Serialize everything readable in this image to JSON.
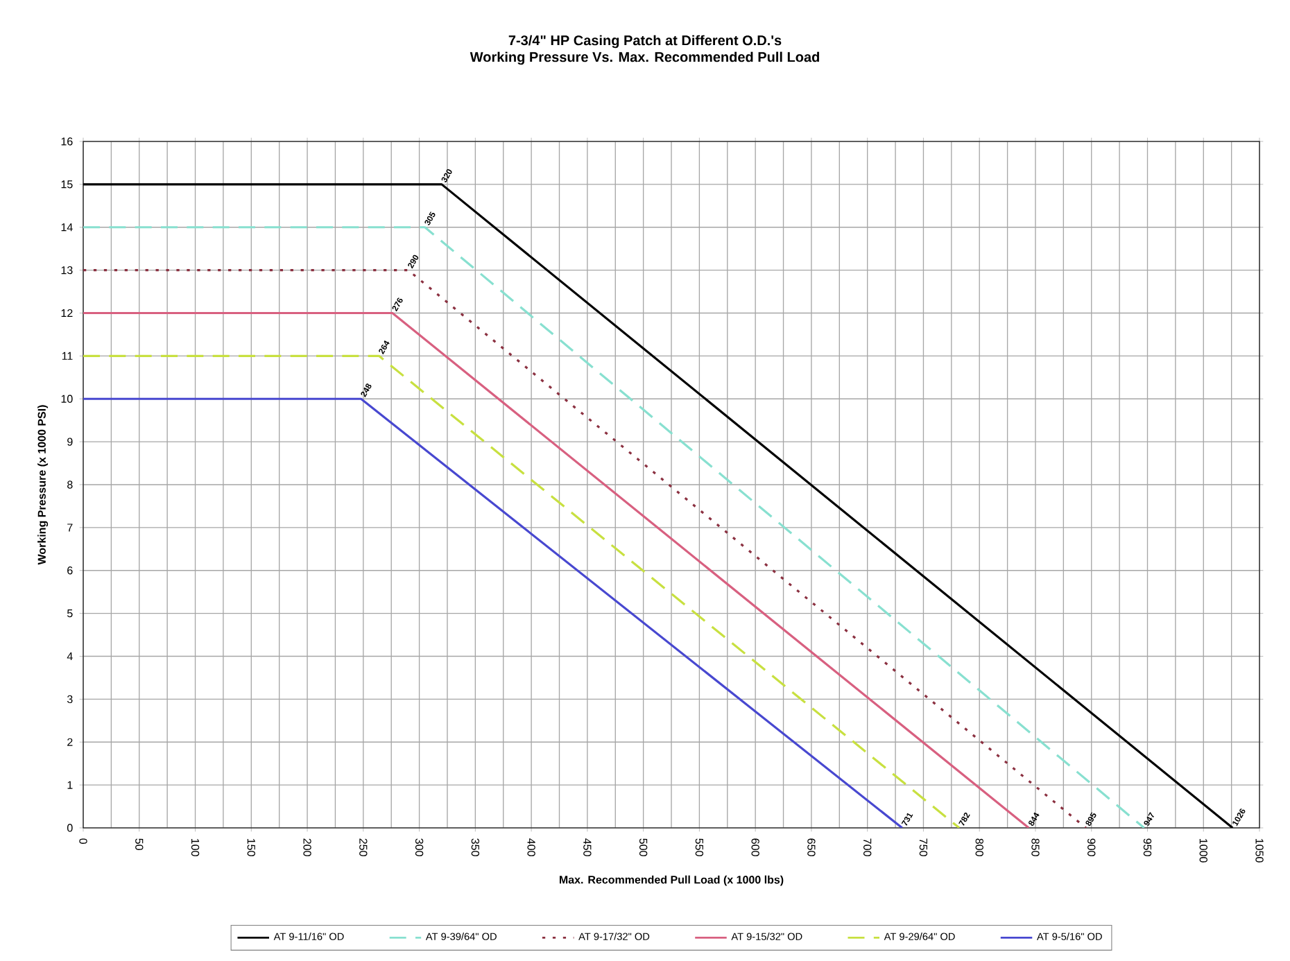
{
  "chart_data": {
    "type": "line",
    "title": "7-3/4\" HP Casing Patch at Different O.D.'s",
    "subtitle": "Working Pressure Vs. Max. Recommended Pull Load",
    "xlabel": "Max. Recommended Pull Load (x 1000 lbs)",
    "ylabel": "Working Pressure (x 1000 PSI)",
    "xlim": [
      0,
      1050
    ],
    "xticks": [
      0,
      50,
      100,
      150,
      200,
      250,
      300,
      350,
      400,
      450,
      500,
      550,
      600,
      650,
      700,
      750,
      800,
      850,
      900,
      950,
      1000,
      1050
    ],
    "ylim": [
      0,
      16
    ],
    "yticks": [
      0,
      1,
      2,
      3,
      4,
      5,
      6,
      7,
      8,
      9,
      10,
      11,
      12,
      13,
      14,
      15,
      16
    ],
    "grid": true,
    "legend": "bottom",
    "marker": "none",
    "series": [
      {
        "name": "AT 9-11/16\" OD",
        "color": "#000000",
        "line_style": "solid",
        "x": [
          0,
          320,
          1026
        ],
        "values": [
          15,
          15,
          0
        ]
      },
      {
        "name": "AT 9-39/64\" OD",
        "color": "#88e0d0",
        "line_style": "dashed",
        "x": [
          0,
          305,
          947
        ],
        "values": [
          14,
          14,
          0
        ]
      },
      {
        "name": "AT 9-17/32\" OD",
        "color": "#8b3040",
        "line_style": "dotted",
        "x": [
          0,
          290,
          895
        ],
        "values": [
          13,
          13,
          0
        ]
      },
      {
        "name": "AT 9-15/32\" OD",
        "color": "#d86080",
        "line_style": "solid",
        "x": [
          0,
          276,
          844
        ],
        "values": [
          12,
          12,
          0
        ]
      },
      {
        "name": "AT 9-29/64\" OD",
        "color": "#c8e040",
        "line_style": "dashed",
        "x": [
          0,
          264,
          782
        ],
        "values": [
          11,
          11,
          0
        ]
      },
      {
        "name": "AT 9-5/16\" OD",
        "color": "#4848d0",
        "line_style": "solid",
        "x": [
          0,
          248,
          731
        ],
        "values": [
          10,
          10,
          0
        ]
      }
    ],
    "annotations": [
      {
        "text": "320",
        "x": 320,
        "y": 15
      },
      {
        "text": "305",
        "x": 305,
        "y": 14
      },
      {
        "text": "290",
        "x": 290,
        "y": 13
      },
      {
        "text": "276",
        "x": 276,
        "y": 12
      },
      {
        "text": "264",
        "x": 264,
        "y": 11
      },
      {
        "text": "248",
        "x": 248,
        "y": 10
      },
      {
        "text": "1026",
        "x": 1026,
        "y": 0
      },
      {
        "text": "947",
        "x": 947,
        "y": 0
      },
      {
        "text": "895",
        "x": 895,
        "y": 0
      },
      {
        "text": "844",
        "x": 844,
        "y": 0
      },
      {
        "text": "782",
        "x": 782,
        "y": 0
      },
      {
        "text": "731",
        "x": 731,
        "y": 0
      }
    ]
  }
}
